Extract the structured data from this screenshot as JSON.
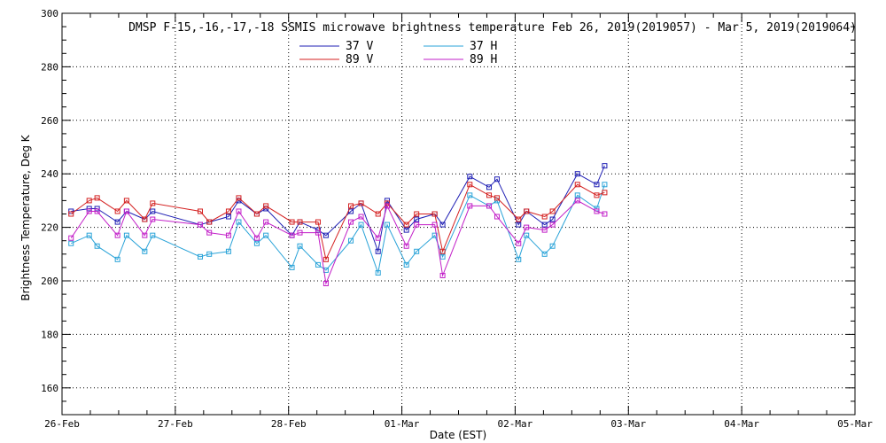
{
  "chart_data": {
    "type": "line",
    "title": "DMSP F-15,-16,-17,-18 SSMIS microwave brightness temperature Feb 26, 2019(2019057) - Mar  5, 2019(2019064)",
    "xlabel": "Date (EST)",
    "ylabel": "Brightness Temperature, Deg K",
    "xlim": [
      0,
      7
    ],
    "ylim": [
      150,
      300
    ],
    "x_unit": "days since 26-Feb 00:00",
    "x_ticks": [
      {
        "value": 0,
        "label": "26-Feb"
      },
      {
        "value": 1,
        "label": "27-Feb"
      },
      {
        "value": 2,
        "label": "28-Feb"
      },
      {
        "value": 3,
        "label": "01-Mar"
      },
      {
        "value": 4,
        "label": "02-Mar"
      },
      {
        "value": 5,
        "label": "03-Mar"
      },
      {
        "value": 6,
        "label": "04-Mar"
      },
      {
        "value": 7,
        "label": "05-Mar"
      }
    ],
    "y_ticks": [
      160,
      180,
      200,
      220,
      240,
      260,
      280,
      300
    ],
    "grid": true,
    "legend_position": "top-center",
    "series": [
      {
        "name": "37 V",
        "color": "#1f1fb4",
        "points": [
          [
            0.08,
            226
          ],
          [
            0.24,
            227
          ],
          [
            0.31,
            227
          ],
          [
            0.49,
            222
          ],
          [
            0.57,
            226
          ],
          [
            0.73,
            223
          ],
          [
            0.8,
            226
          ],
          [
            1.22,
            221
          ],
          [
            1.3,
            222
          ],
          [
            1.47,
            224
          ],
          [
            1.56,
            230
          ],
          [
            1.72,
            225
          ],
          [
            1.8,
            227
          ],
          [
            2.03,
            217
          ],
          [
            2.1,
            222
          ],
          [
            2.26,
            219
          ],
          [
            2.33,
            217
          ],
          [
            2.55,
            226
          ],
          [
            2.64,
            229
          ],
          [
            2.79,
            211
          ],
          [
            2.87,
            230
          ],
          [
            3.04,
            219
          ],
          [
            3.13,
            223
          ],
          [
            3.29,
            225
          ],
          [
            3.36,
            221
          ],
          [
            3.6,
            239
          ],
          [
            3.77,
            235
          ],
          [
            3.84,
            238
          ],
          [
            4.03,
            221
          ],
          [
            4.1,
            226
          ],
          [
            4.26,
            221
          ],
          [
            4.33,
            223
          ],
          [
            4.55,
            240
          ],
          [
            4.72,
            236
          ],
          [
            4.79,
            243
          ]
        ]
      },
      {
        "name": "37 H",
        "color": "#2aa3d8",
        "points": [
          [
            0.08,
            214
          ],
          [
            0.24,
            217
          ],
          [
            0.31,
            213
          ],
          [
            0.49,
            208
          ],
          [
            0.57,
            217
          ],
          [
            0.73,
            211
          ],
          [
            0.8,
            217
          ],
          [
            1.22,
            209
          ],
          [
            1.3,
            210
          ],
          [
            1.47,
            211
          ],
          [
            1.56,
            222
          ],
          [
            1.72,
            214
          ],
          [
            1.8,
            217
          ],
          [
            2.03,
            205
          ],
          [
            2.1,
            213
          ],
          [
            2.26,
            206
          ],
          [
            2.33,
            204
          ],
          [
            2.55,
            215
          ],
          [
            2.64,
            221
          ],
          [
            2.79,
            203
          ],
          [
            2.87,
            221
          ],
          [
            3.04,
            206
          ],
          [
            3.13,
            211
          ],
          [
            3.29,
            217
          ],
          [
            3.36,
            209
          ],
          [
            3.6,
            232
          ],
          [
            3.77,
            228
          ],
          [
            3.84,
            230
          ],
          [
            4.03,
            208
          ],
          [
            4.1,
            217
          ],
          [
            4.26,
            210
          ],
          [
            4.33,
            213
          ],
          [
            4.55,
            232
          ],
          [
            4.72,
            227
          ],
          [
            4.79,
            236
          ]
        ]
      },
      {
        "name": "89 V",
        "color": "#d42020",
        "points": [
          [
            0.08,
            225
          ],
          [
            0.24,
            230
          ],
          [
            0.31,
            231
          ],
          [
            0.49,
            226
          ],
          [
            0.57,
            230
          ],
          [
            0.73,
            223
          ],
          [
            0.8,
            229
          ],
          [
            1.22,
            226
          ],
          [
            1.3,
            222
          ],
          [
            1.47,
            226
          ],
          [
            1.56,
            231
          ],
          [
            1.72,
            225
          ],
          [
            1.8,
            228
          ],
          [
            2.03,
            222
          ],
          [
            2.1,
            222
          ],
          [
            2.26,
            222
          ],
          [
            2.33,
            208
          ],
          [
            2.55,
            228
          ],
          [
            2.64,
            229
          ],
          [
            2.79,
            225
          ],
          [
            2.87,
            229
          ],
          [
            3.04,
            221
          ],
          [
            3.13,
            225
          ],
          [
            3.29,
            225
          ],
          [
            3.36,
            211
          ],
          [
            3.6,
            236
          ],
          [
            3.77,
            232
          ],
          [
            3.84,
            231
          ],
          [
            4.03,
            223
          ],
          [
            4.1,
            226
          ],
          [
            4.26,
            224
          ],
          [
            4.33,
            226
          ],
          [
            4.55,
            236
          ],
          [
            4.72,
            232
          ],
          [
            4.79,
            233
          ]
        ]
      },
      {
        "name": "89 H",
        "color": "#c21fc8",
        "points": [
          [
            0.08,
            216
          ],
          [
            0.24,
            226
          ],
          [
            0.31,
            226
          ],
          [
            0.49,
            217
          ],
          [
            0.57,
            226
          ],
          [
            0.73,
            217
          ],
          [
            0.8,
            223
          ],
          [
            1.22,
            221
          ],
          [
            1.3,
            218
          ],
          [
            1.47,
            217
          ],
          [
            1.56,
            226
          ],
          [
            1.72,
            216
          ],
          [
            1.8,
            222
          ],
          [
            2.03,
            217
          ],
          [
            2.1,
            218
          ],
          [
            2.26,
            218
          ],
          [
            2.33,
            199
          ],
          [
            2.55,
            222
          ],
          [
            2.64,
            224
          ],
          [
            2.79,
            216
          ],
          [
            2.87,
            228
          ],
          [
            3.04,
            213
          ],
          [
            3.13,
            221
          ],
          [
            3.29,
            221
          ],
          [
            3.36,
            202
          ],
          [
            3.6,
            228
          ],
          [
            3.77,
            228
          ],
          [
            3.84,
            224
          ],
          [
            4.03,
            214
          ],
          [
            4.1,
            220
          ],
          [
            4.26,
            219
          ],
          [
            4.33,
            221
          ],
          [
            4.55,
            230
          ],
          [
            4.72,
            226
          ],
          [
            4.79,
            225
          ]
        ]
      }
    ]
  }
}
